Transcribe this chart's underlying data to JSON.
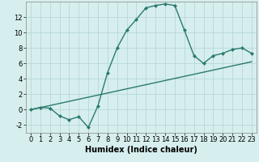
{
  "title": "",
  "xlabel": "Humidex (Indice chaleur)",
  "background_color": "#d6eeee",
  "line_color": "#2a7a6e",
  "grid_color": "#b8d8d8",
  "x_data": [
    0,
    1,
    2,
    3,
    4,
    5,
    6,
    7,
    8,
    9,
    10,
    11,
    12,
    13,
    14,
    15,
    16,
    17,
    18,
    19,
    20,
    21,
    22,
    23
  ],
  "y_curve": [
    0,
    0.3,
    0.2,
    -0.8,
    -1.3,
    -0.9,
    -2.3,
    0.5,
    4.8,
    8.0,
    10.3,
    11.7,
    13.2,
    13.5,
    13.7,
    13.5,
    10.3,
    7.0,
    6.0,
    7.0,
    7.3,
    7.8,
    8.0,
    7.3
  ],
  "y_line": [
    0.0,
    0.27,
    0.54,
    0.81,
    1.08,
    1.35,
    1.62,
    1.89,
    2.16,
    2.43,
    2.7,
    2.97,
    3.24,
    3.51,
    3.78,
    4.05,
    4.32,
    4.59,
    4.86,
    5.13,
    5.4,
    5.67,
    5.94,
    6.21
  ],
  "xlim": [
    -0.5,
    23.5
  ],
  "ylim": [
    -3,
    14
  ],
  "yticks": [
    -2,
    0,
    2,
    4,
    6,
    8,
    10,
    12
  ],
  "xticks": [
    0,
    1,
    2,
    3,
    4,
    5,
    6,
    7,
    8,
    9,
    10,
    11,
    12,
    13,
    14,
    15,
    16,
    17,
    18,
    19,
    20,
    21,
    22,
    23
  ],
  "tick_fontsize": 6,
  "xlabel_fontsize": 7,
  "marker": "D",
  "markersize": 2.5,
  "linewidth": 1.0
}
